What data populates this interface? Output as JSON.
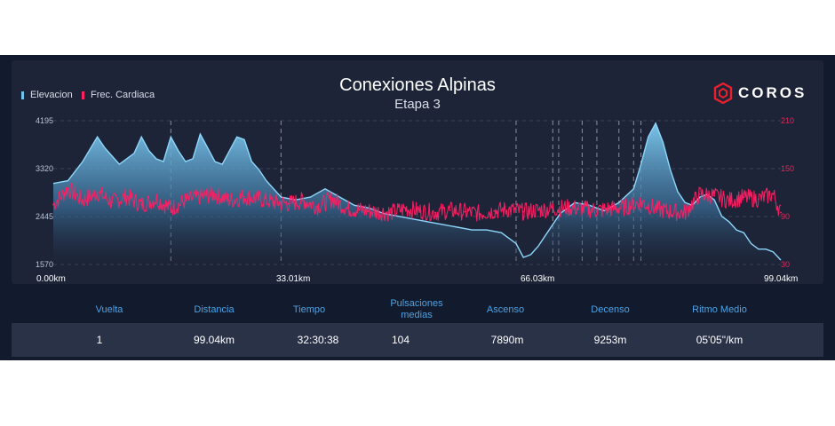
{
  "chart_data": {
    "type": "line",
    "title": "Conexiones Alpinas",
    "subtitle": "Etapa 3",
    "xlim": [
      0,
      99.04
    ],
    "x_tick_labels": [
      "0.00km",
      "33.01km",
      "66.03km",
      "99.04km"
    ],
    "y_left": {
      "ylim": [
        1570,
        4195
      ],
      "tick_labels": [
        "4195",
        "3320",
        "2445",
        "1570"
      ]
    },
    "y_right": {
      "ylim": [
        30,
        210
      ],
      "tick_labels": [
        "210",
        "150",
        "90",
        "30"
      ]
    },
    "series": [
      {
        "name": "Elevacion",
        "axis": "left",
        "color": "#6fc2ee",
        "type": "area",
        "x": [
          0,
          2,
          4,
          6,
          7,
          9,
          11,
          12,
          13,
          14,
          15,
          16,
          17,
          18,
          19,
          20,
          21,
          22,
          23,
          24,
          25,
          26,
          27,
          28,
          29,
          31,
          33,
          35,
          37,
          39,
          41,
          43,
          45,
          47,
          49,
          51,
          53,
          55,
          57,
          59,
          61,
          63,
          64,
          65,
          66,
          67,
          69,
          71,
          73,
          75,
          77,
          79,
          80,
          81,
          82,
          83,
          84,
          85,
          86,
          87,
          88,
          89,
          90,
          91,
          92,
          93,
          94,
          95,
          96,
          97,
          98,
          99.04
        ],
        "y": [
          3050,
          3100,
          3450,
          3900,
          3700,
          3400,
          3600,
          3900,
          3650,
          3500,
          3450,
          3900,
          3650,
          3450,
          3500,
          3950,
          3700,
          3450,
          3400,
          3650,
          3900,
          3850,
          3450,
          3300,
          3100,
          2800,
          2750,
          2800,
          2950,
          2800,
          2650,
          2600,
          2500,
          2450,
          2400,
          2350,
          2300,
          2250,
          2200,
          2200,
          2150,
          1950,
          1700,
          1750,
          1900,
          2100,
          2500,
          2700,
          2650,
          2550,
          2700,
          2950,
          3400,
          3900,
          4150,
          3800,
          3300,
          2900,
          2700,
          2650,
          2800,
          2850,
          2750,
          2450,
          2350,
          2200,
          2150,
          1950,
          1850,
          1850,
          1800,
          1650
        ]
      },
      {
        "name": "Frec. Cardiaca",
        "axis": "right",
        "color": "#ff1f63",
        "type": "line",
        "x": [
          0,
          2,
          4,
          6,
          8,
          10,
          12,
          14,
          16,
          18,
          20,
          22,
          24,
          26,
          28,
          30,
          32,
          34,
          36,
          38,
          40,
          42,
          44,
          46,
          48,
          50,
          52,
          54,
          56,
          58,
          60,
          62,
          64,
          66,
          68,
          70,
          72,
          74,
          76,
          78,
          80,
          82,
          84,
          86,
          88,
          90,
          92,
          94,
          96,
          98,
          99.04
        ],
        "y": [
          105,
          125,
          110,
          120,
          108,
          115,
          105,
          112,
          100,
          110,
          115,
          118,
          110,
          115,
          112,
          108,
          106,
          110,
          103,
          112,
          100,
          98,
          96,
          95,
          100,
          97,
          95,
          98,
          96,
          94,
          97,
          99,
          96,
          98,
          100,
          101,
          100,
          98,
          100,
          102,
          108,
          100,
          96,
          95,
          118,
          116,
          110,
          114,
          112,
          118,
          95
        ]
      }
    ],
    "laps_km": [
      16,
      31,
      63,
      68,
      68.8,
      72,
      74,
      77,
      79,
      80
    ]
  },
  "legend": {
    "elev": "Elevacion",
    "hr": "Frec. Cardiaca"
  },
  "brand": {
    "name": "COROS",
    "color": "#e8202e",
    "icon": "coros-hexagon-logo"
  },
  "stats": {
    "headers": [
      "Vuelta",
      "Distancia",
      "Tiempo",
      "Pulsaciones medias",
      "Ascenso",
      "Decenso",
      "Ritmo Medio"
    ],
    "values": [
      "1",
      "99.04km",
      "32:30:38",
      "104",
      "7890m",
      "9253m",
      "05'05\"/km"
    ]
  },
  "colors": {
    "background": "#121a2d",
    "card": "#1d2437",
    "header_text": "#4aa3e6",
    "row": "#2a3248"
  }
}
